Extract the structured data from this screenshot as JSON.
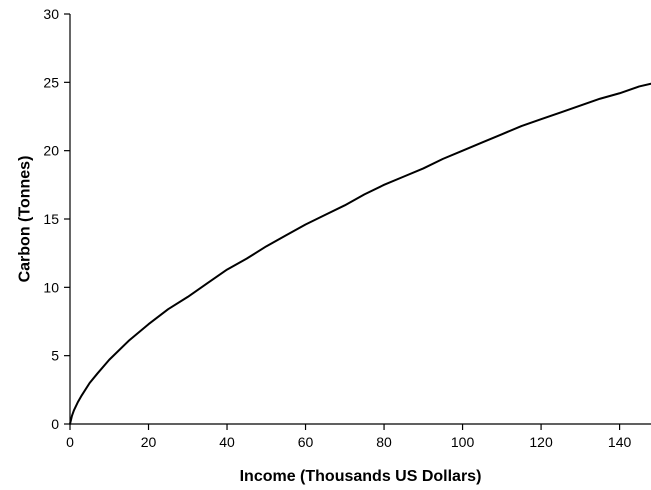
{
  "chart_data": {
    "type": "line",
    "title": "",
    "xlabel": "Income (Thousands US Dollars)",
    "ylabel": "Carbon (Tonnes)",
    "xlim": [
      0,
      148
    ],
    "ylim": [
      0,
      30
    ],
    "x_ticks": [
      0,
      20,
      40,
      60,
      80,
      100,
      120,
      140
    ],
    "y_ticks": [
      0,
      5,
      10,
      15,
      20,
      25,
      30
    ],
    "grid": false,
    "legend": "none",
    "series": [
      {
        "color": "#000000",
        "x": [
          0,
          0.5,
          1,
          2,
          3,
          5,
          7,
          10,
          15,
          20,
          25,
          30,
          35,
          40,
          45,
          50,
          55,
          60,
          65,
          70,
          75,
          80,
          85,
          90,
          95,
          100,
          105,
          110,
          115,
          120,
          125,
          130,
          135,
          140,
          145,
          148
        ],
        "y": [
          0,
          0.6,
          1.0,
          1.6,
          2.1,
          3.0,
          3.7,
          4.7,
          6.1,
          7.3,
          8.4,
          9.3,
          10.3,
          11.3,
          12.1,
          13.0,
          13.8,
          14.6,
          15.3,
          16.0,
          16.8,
          17.5,
          18.1,
          18.7,
          19.4,
          20.0,
          20.6,
          21.2,
          21.8,
          22.3,
          22.8,
          23.3,
          23.8,
          24.2,
          24.7,
          24.9
        ]
      }
    ]
  }
}
